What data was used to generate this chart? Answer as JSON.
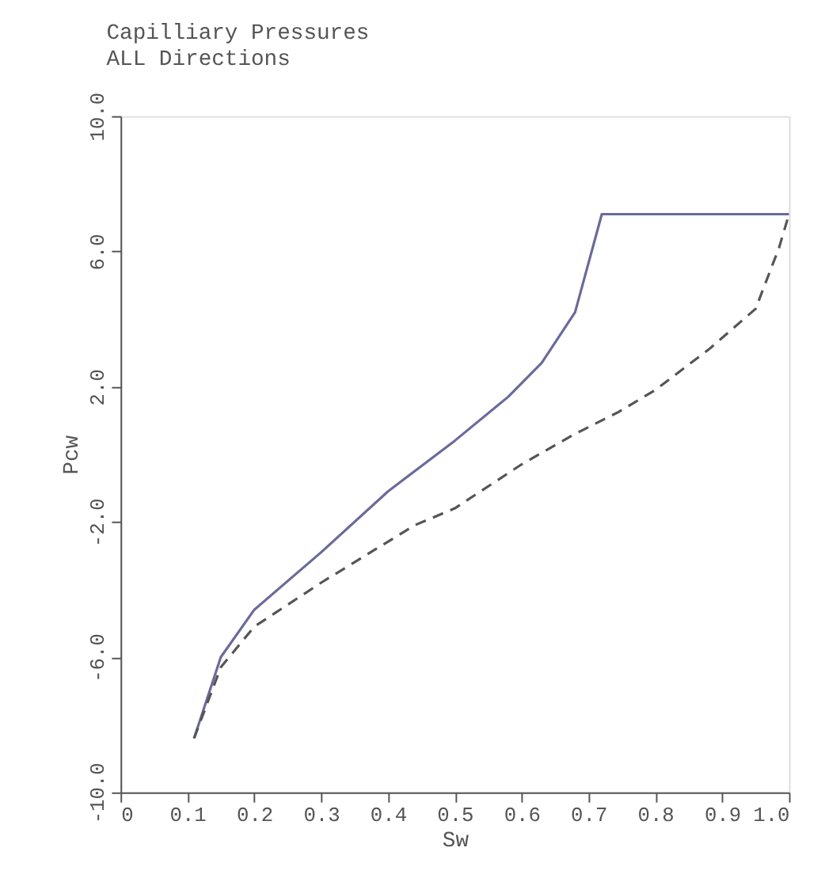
{
  "chart_data": {
    "type": "line",
    "title": "Capilliary Pressures",
    "subtitle": "ALL Directions",
    "xlabel": "Sw",
    "ylabel": "Pcw",
    "xlim": [
      0,
      1.0
    ],
    "xticks": [
      0,
      {
        "value": 0.1,
        "label": "0.1"
      },
      {
        "value": 0.2,
        "label": "0.2"
      },
      {
        "value": 0.3,
        "label": "0.3"
      },
      {
        "value": 0.4,
        "label": "0.4"
      },
      {
        "value": 0.5,
        "label": "0.5"
      },
      {
        "value": 0.6,
        "label": "0.6"
      },
      {
        "value": 0.7,
        "label": "0.7"
      },
      {
        "value": 0.8,
        "label": "0.8"
      },
      {
        "value": 0.9,
        "label": "0.9"
      },
      {
        "value": 1.0,
        "label": "1.0"
      }
    ],
    "ylim": [
      -10,
      10
    ],
    "yticks": [
      {
        "value": -10,
        "label": "-10.0"
      },
      {
        "value": -6,
        "label": "-6.0"
      },
      {
        "value": -2,
        "label": "-2.0"
      },
      {
        "value": 2,
        "label": "2.0"
      },
      {
        "value": 6,
        "label": "6.0"
      },
      {
        "value": 10,
        "label": "10.0"
      }
    ],
    "grid": false,
    "series": [
      {
        "color": "#6a6a9a",
        "line_style": "solid",
        "x": [
          0.11,
          0.15,
          0.2,
          0.3,
          0.4,
          0.5,
          0.58,
          0.63,
          0.68,
          0.72,
          1.0
        ],
        "values": [
          -8.4,
          -6.0,
          -4.6,
          -2.9,
          -1.1,
          0.4,
          1.7,
          2.7,
          4.2,
          7.1,
          7.1
        ]
      },
      {
        "color": "#555555",
        "line_style": "dashed",
        "x": [
          0.11,
          0.15,
          0.2,
          0.3,
          0.44,
          0.5,
          0.6,
          0.675,
          0.745,
          0.8,
          0.88,
          0.95,
          0.985,
          1.0
        ],
        "values": [
          -8.4,
          -6.3,
          -5.1,
          -3.8,
          -2.1,
          -1.6,
          -0.3,
          0.55,
          1.25,
          1.9,
          3.1,
          4.3,
          6.1,
          7.1
        ]
      }
    ]
  }
}
